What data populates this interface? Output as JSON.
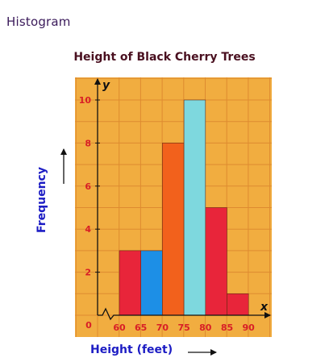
{
  "page": {
    "heading": "Histogram"
  },
  "chart_data": {
    "type": "bar",
    "title": "Height of Black Cherry Trees",
    "xlabel": "Height (feet)",
    "ylabel": "Frequency",
    "x_axis_letter": "x",
    "y_axis_letter": "y",
    "origin_label": "0",
    "bins": [
      {
        "range": [
          60,
          65
        ],
        "value": 3,
        "color": "#e8253a"
      },
      {
        "range": [
          65,
          70
        ],
        "value": 3,
        "color": "#1d8fe6"
      },
      {
        "range": [
          70,
          75
        ],
        "value": 8,
        "color": "#f2611c"
      },
      {
        "range": [
          75,
          80
        ],
        "value": 10,
        "color": "#7ed8de"
      },
      {
        "range": [
          80,
          85
        ],
        "value": 5,
        "color": "#e8253a"
      },
      {
        "range": [
          85,
          90
        ],
        "value": 1,
        "color": "#e8253a"
      }
    ],
    "x_ticks": [
      60,
      65,
      70,
      75,
      80,
      85,
      90
    ],
    "y_ticks": [
      2,
      4,
      6,
      8,
      10
    ],
    "ylim": [
      0,
      11
    ],
    "axis_break": true,
    "grid": true,
    "colors": {
      "background": "#f1ad40",
      "grid": "#de8b30",
      "tick_labels": "#d81e26",
      "axis_labels": "#1c1cc4"
    }
  }
}
